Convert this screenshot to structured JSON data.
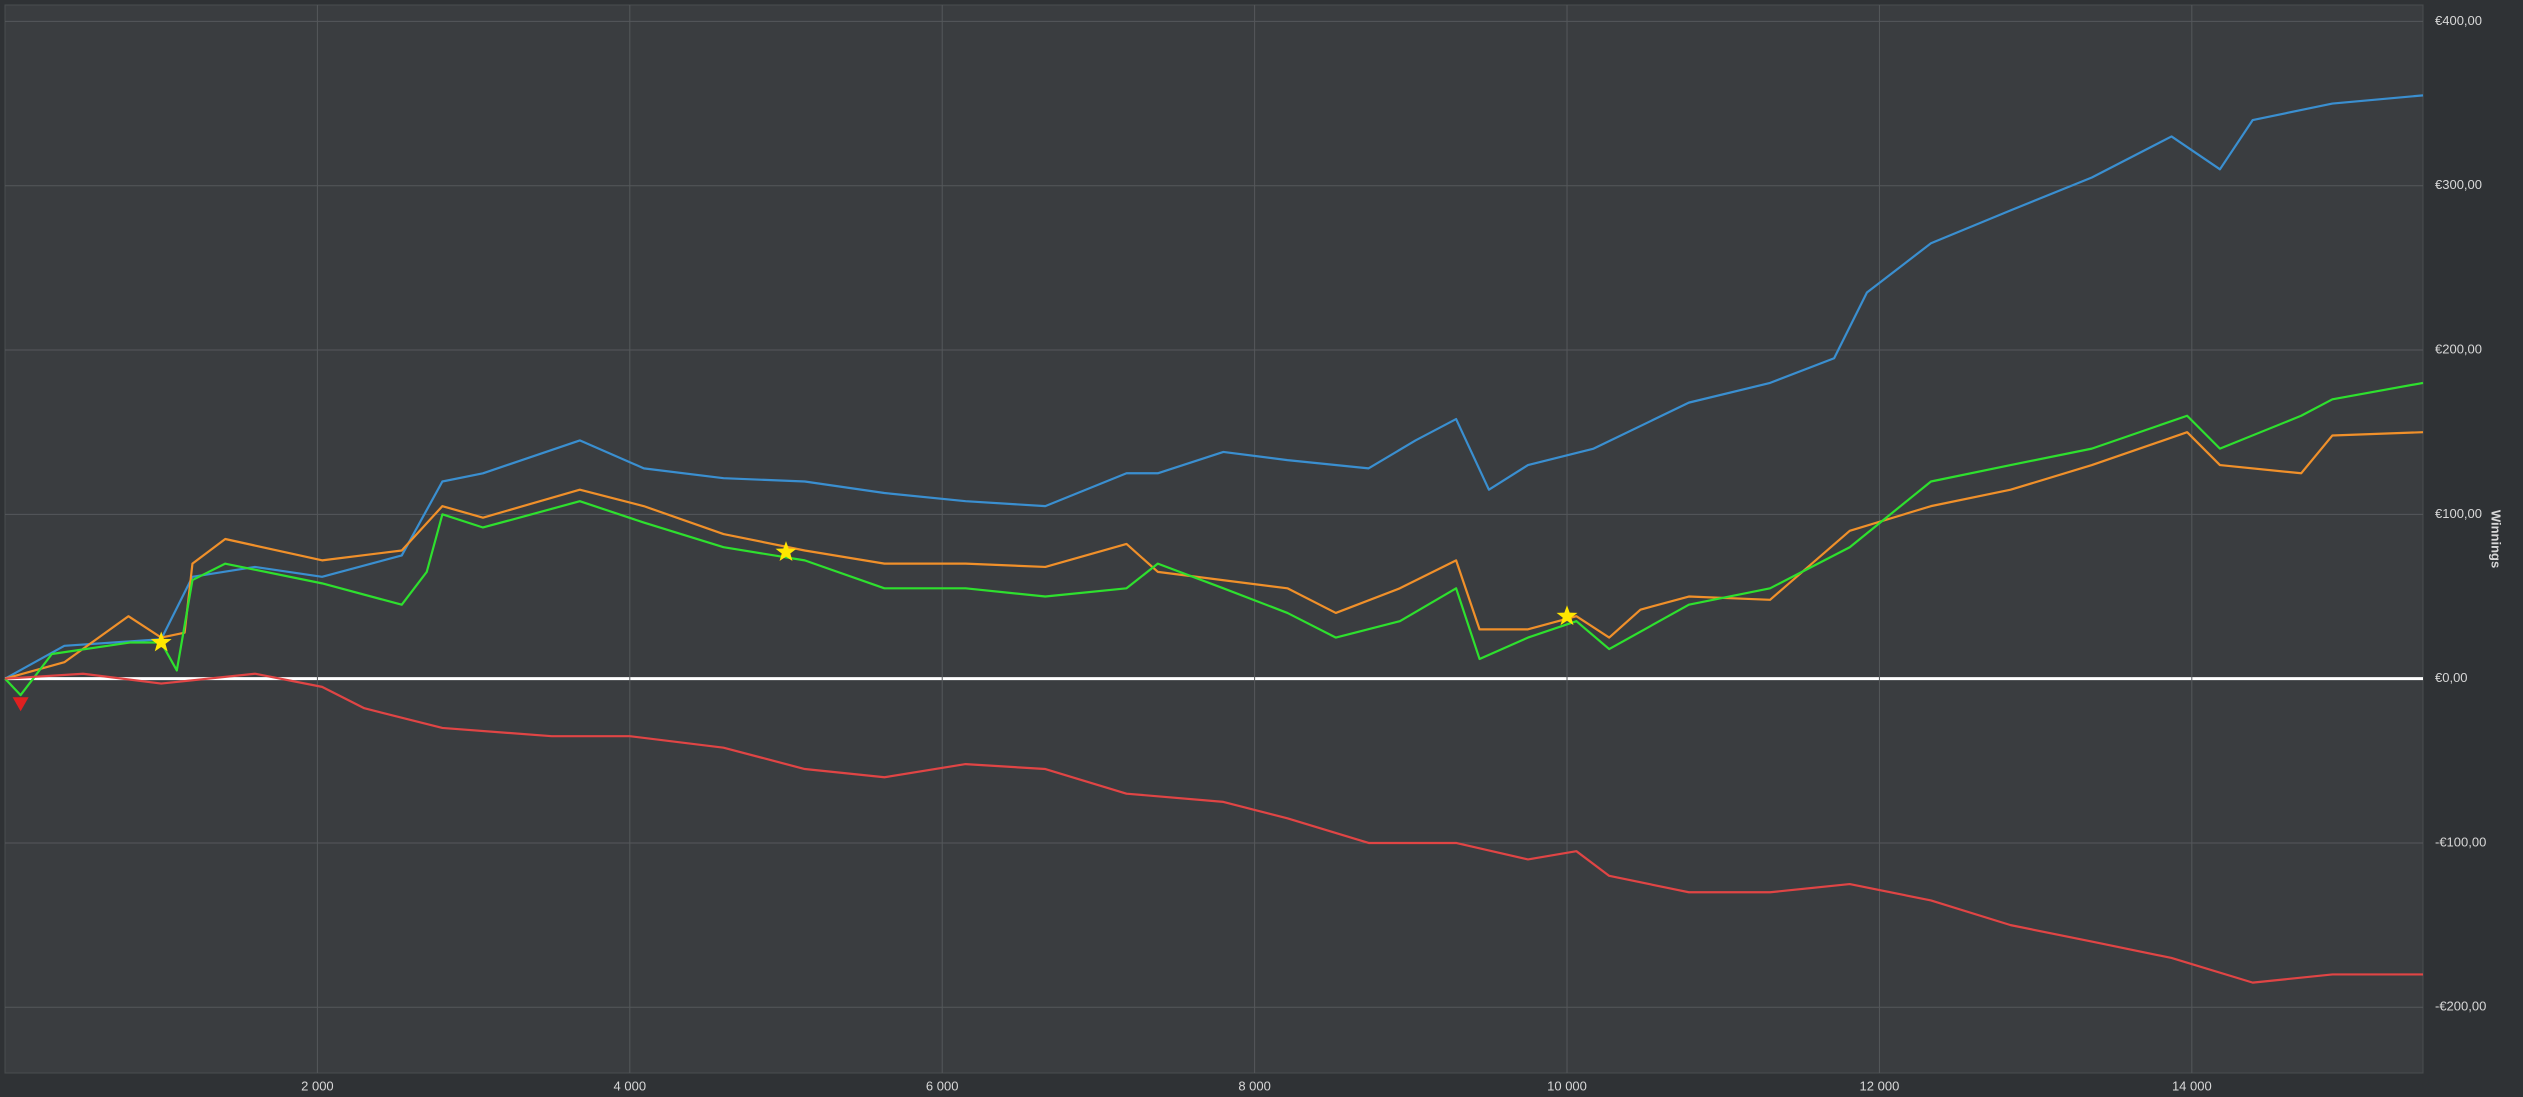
{
  "chart_data": {
    "type": "line",
    "y_axis_label": "Winnings",
    "xlim": [
      0,
      15480
    ],
    "ylim": [
      -240,
      410
    ],
    "xticks": [
      {
        "value": 2000,
        "label": "2 000"
      },
      {
        "value": 4000,
        "label": "4 000"
      },
      {
        "value": 6000,
        "label": "6 000"
      },
      {
        "value": 8000,
        "label": "8 000"
      },
      {
        "value": 10000,
        "label": "10 000"
      },
      {
        "value": 12000,
        "label": "12 000"
      },
      {
        "value": 14000,
        "label": "14 000"
      }
    ],
    "yticks": [
      {
        "value": -200,
        "label": "-€200,00"
      },
      {
        "value": -100,
        "label": "-€100,00"
      },
      {
        "value": 0,
        "label": "€0,00"
      },
      {
        "value": 100,
        "label": "€100,00"
      },
      {
        "value": 200,
        "label": "€200,00"
      },
      {
        "value": 300,
        "label": "€300,00"
      },
      {
        "value": 400,
        "label": "€400,00"
      }
    ],
    "grid": true,
    "series": [
      {
        "color": "#3a8fd0",
        "x": [
          0,
          380,
          1000,
          1200,
          1600,
          2030,
          2540,
          2800,
          3060,
          3680,
          4090,
          4600,
          5120,
          5630,
          6150,
          6660,
          7180,
          7380,
          7800,
          8210,
          8730,
          9030,
          9290,
          9500,
          9750,
          10170,
          10780,
          11300,
          11710,
          11920,
          12330,
          12840,
          13360,
          13870,
          14180,
          14390,
          14900,
          15480
        ],
        "values": [
          0,
          20,
          24,
          62,
          68,
          62,
          75,
          120,
          125,
          145,
          128,
          122,
          120,
          113,
          108,
          105,
          125,
          125,
          138,
          133,
          128,
          145,
          158,
          115,
          130,
          140,
          168,
          180,
          195,
          235,
          265,
          285,
          305,
          330,
          310,
          340,
          350,
          355
        ]
      },
      {
        "color": "#f0902a",
        "x": [
          0,
          380,
          790,
          1000,
          1150,
          1200,
          1410,
          2030,
          2540,
          2800,
          3060,
          3680,
          4090,
          4600,
          5120,
          5630,
          6150,
          6660,
          7180,
          7380,
          8210,
          8520,
          8930,
          9290,
          9440,
          9750,
          10060,
          10270,
          10470,
          10780,
          11300,
          11810,
          12330,
          12840,
          13360,
          13970,
          14180,
          14700,
          14900,
          15480
        ],
        "values": [
          0,
          10,
          38,
          25,
          28,
          70,
          85,
          72,
          78,
          105,
          98,
          115,
          105,
          88,
          78,
          70,
          70,
          68,
          82,
          65,
          55,
          40,
          55,
          72,
          30,
          30,
          38,
          25,
          42,
          50,
          48,
          90,
          105,
          115,
          130,
          150,
          130,
          125,
          148,
          150
        ]
      },
      {
        "color": "#2ee02e",
        "x": [
          0,
          100,
          300,
          800,
          1000,
          1100,
          1200,
          1410,
          2030,
          2540,
          2700,
          2800,
          3060,
          3680,
          4090,
          4600,
          5120,
          5630,
          6150,
          6660,
          7180,
          7380,
          7800,
          8210,
          8520,
          8930,
          9290,
          9440,
          9750,
          10060,
          10270,
          10780,
          11300,
          11810,
          12330,
          12840,
          13360,
          13970,
          14180,
          14700,
          14900,
          15480
        ],
        "values": [
          0,
          -10,
          15,
          22,
          22,
          5,
          60,
          70,
          58,
          45,
          65,
          100,
          92,
          108,
          95,
          80,
          72,
          55,
          55,
          50,
          55,
          70,
          55,
          40,
          25,
          35,
          55,
          12,
          25,
          35,
          18,
          45,
          55,
          80,
          120,
          130,
          140,
          160,
          140,
          160,
          170,
          180
        ]
      },
      {
        "color": "#e04545",
        "x": [
          0,
          500,
          1000,
          1600,
          2030,
          2300,
          2800,
          3500,
          4000,
          4600,
          5120,
          5630,
          6150,
          6660,
          7180,
          7800,
          8210,
          8730,
          9290,
          9750,
          10060,
          10270,
          10780,
          11300,
          11810,
          12330,
          12840,
          13360,
          13870,
          14390,
          14900,
          15480
        ],
        "values": [
          0,
          3,
          -3,
          3,
          -5,
          -18,
          -30,
          -35,
          -35,
          -42,
          -55,
          -60,
          -52,
          -55,
          -70,
          -75,
          -85,
          -100,
          -100,
          -110,
          -105,
          -120,
          -130,
          -130,
          -125,
          -135,
          -150,
          -160,
          -170,
          -185,
          -180,
          -180
        ]
      }
    ],
    "markers": [
      {
        "x": 100,
        "y": -15,
        "symbol": "triangle",
        "color": "#e02020"
      },
      {
        "x": 1000,
        "y": 22,
        "symbol": "star",
        "color": "#ffe600"
      },
      {
        "x": 5000,
        "y": 77,
        "symbol": "star",
        "color": "#ffe600"
      },
      {
        "x": 10000,
        "y": 38,
        "symbol": "star",
        "color": "#ffe600"
      }
    ]
  }
}
